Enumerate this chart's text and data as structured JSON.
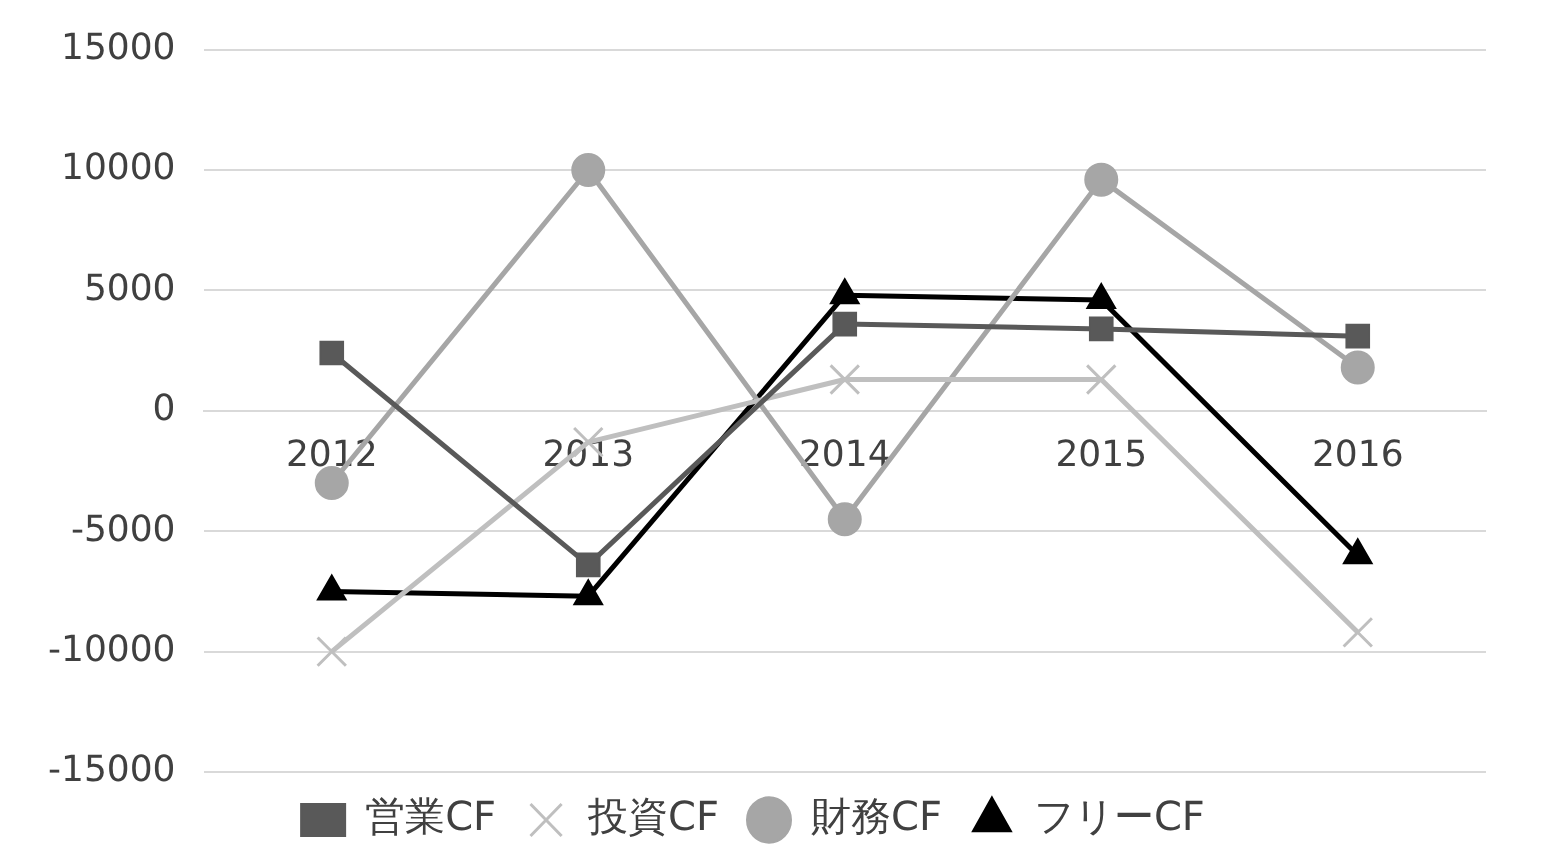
{
  "chart_data": {
    "type": "line",
    "categories": [
      "2012",
      "2013",
      "2014",
      "2015",
      "2016"
    ],
    "series": [
      {
        "name": "営業CF",
        "color": "#595959",
        "marker": "square",
        "values": [
          2400,
          -6400,
          3600,
          3400,
          3100
        ]
      },
      {
        "name": "投資CF",
        "color": "#bfbfbf",
        "marker": "cross",
        "values": [
          -10000,
          -1300,
          1300,
          1300,
          -9200
        ]
      },
      {
        "name": "財務CF",
        "color": "#a6a6a6",
        "marker": "circle",
        "values": [
          -3000,
          10000,
          -4500,
          9600,
          1800
        ]
      },
      {
        "name": "フリーCF",
        "color": "#000000",
        "marker": "triangle",
        "values": [
          -7500,
          -7700,
          4800,
          4600,
          -6000
        ]
      }
    ],
    "ylim": [
      -15000,
      15000
    ],
    "yticks": [
      -15000,
      -10000,
      -5000,
      0,
      5000,
      10000,
      15000
    ],
    "grid": "y",
    "legend": "bottom",
    "line_style": "solid"
  }
}
